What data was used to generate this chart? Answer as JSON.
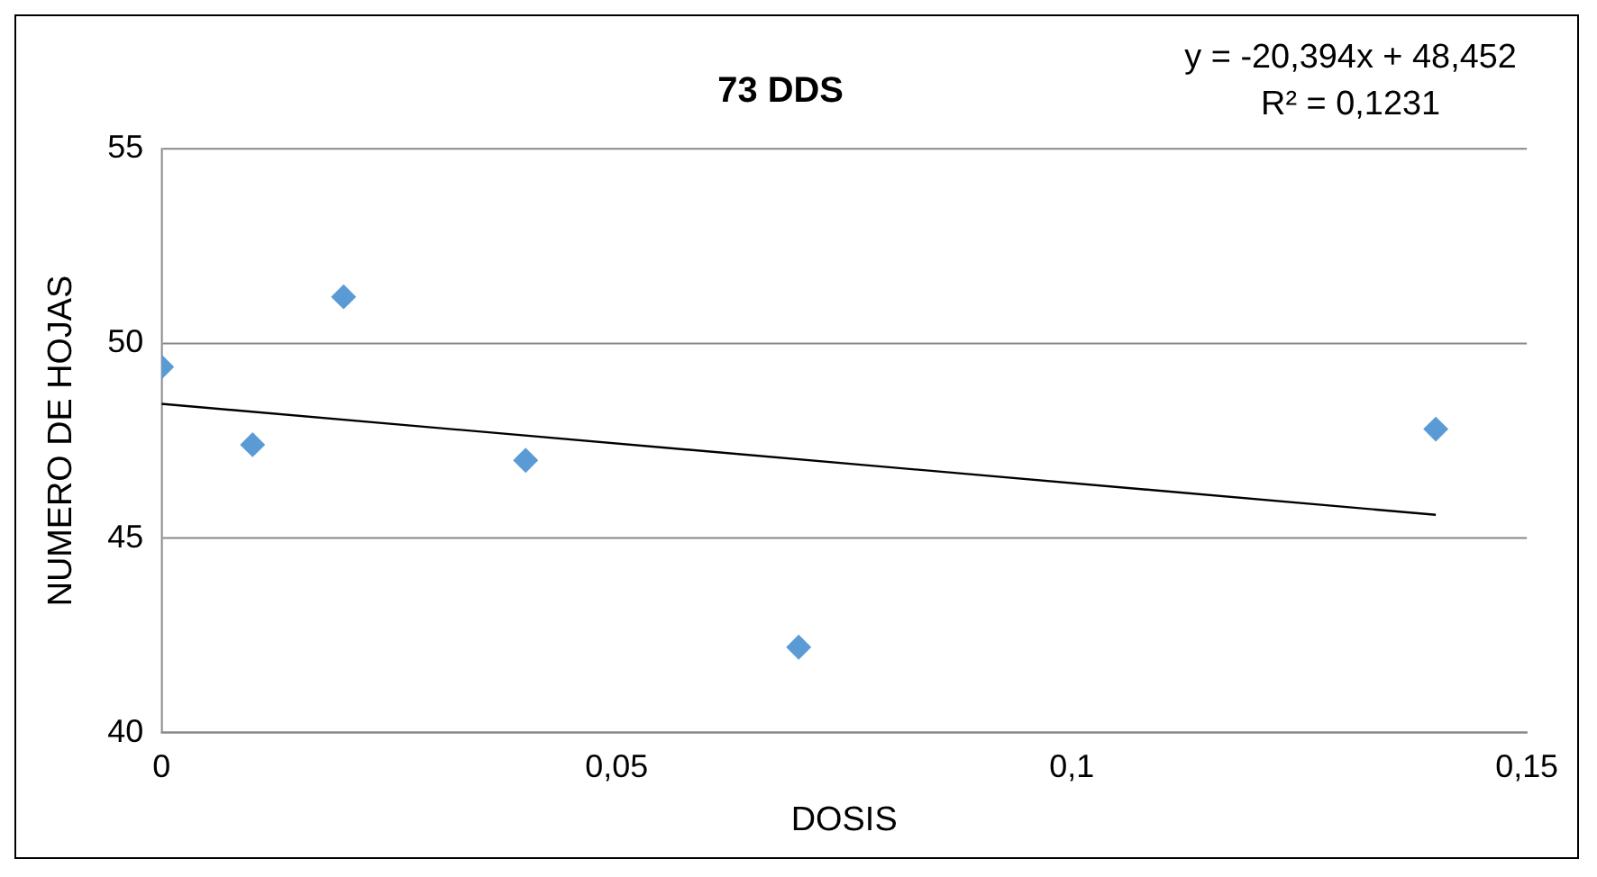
{
  "chart_data": {
    "type": "scatter",
    "title": "73 DDS",
    "xlabel": "DOSIS",
    "ylabel": "NUMERO DE HOJAS",
    "annotations": [
      "y = -20,394x + 48,452",
      "R² = 0,1231"
    ],
    "series": [
      {
        "color": "#5b9bd5",
        "marker": "diamond",
        "x": [
          0,
          0.01,
          0.02,
          0.04,
          0.07,
          0.14
        ],
        "values": [
          49.4,
          47.4,
          51.2,
          47.0,
          42.2,
          47.8
        ]
      },
      {
        "type": "line",
        "color": "#000000",
        "marker": "none",
        "x": [
          0,
          0.14
        ],
        "values": [
          48.45,
          45.6
        ]
      }
    ],
    "xlim": [
      0,
      0.15
    ],
    "ylim": [
      40,
      55
    ],
    "xticks": [
      {
        "value": 0,
        "label": "0"
      },
      {
        "value": 0.05,
        "label": "0,05"
      },
      {
        "value": 0.1,
        "label": "0,1"
      },
      {
        "value": 0.15,
        "label": "0,15"
      }
    ],
    "yticks": [
      40,
      45,
      50,
      55
    ],
    "grid": "y"
  }
}
